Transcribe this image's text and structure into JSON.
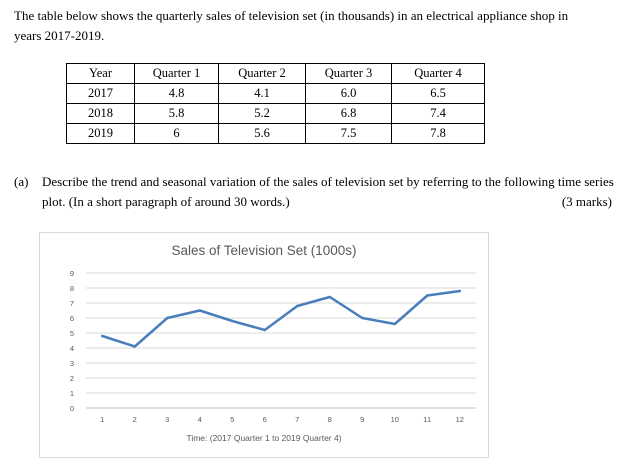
{
  "intro": {
    "line1": "The table below shows the quarterly sales of television set (in thousands) in an electrical appliance shop in",
    "line2": "years 2017-2019."
  },
  "table": {
    "headers": [
      "Year",
      "Quarter 1",
      "Quarter 2",
      "Quarter 3",
      "Quarter 4"
    ],
    "rows": [
      [
        "2017",
        "4.8",
        "4.1",
        "6.0",
        "6.5"
      ],
      [
        "2018",
        "5.8",
        "5.2",
        "6.8",
        "7.4"
      ],
      [
        "2019",
        "6",
        "5.6",
        "7.5",
        "7.8"
      ]
    ]
  },
  "question": {
    "number": "(a)",
    "text": "Describe the trend and seasonal variation of the sales of television set by referring to the following time series plot.  (In a short paragraph of around 30 words.)",
    "marks": "(3 marks)"
  },
  "chart_data": {
    "type": "line",
    "title": "Sales of Television Set (1000s)",
    "xlabel": "Time: (2017 Quarter 1 to 2019 Quarter 4)",
    "ylabel": "",
    "x": [
      1,
      2,
      3,
      4,
      5,
      6,
      7,
      8,
      9,
      10,
      11,
      12
    ],
    "y_ticks": [
      0,
      1,
      2,
      3,
      4,
      5,
      6,
      7,
      8,
      9
    ],
    "ylim": [
      0,
      9
    ],
    "grid": true,
    "legend": "none",
    "line_color": "#4a7ebb",
    "series": [
      {
        "values": [
          4.8,
          4.1,
          6.0,
          6.5,
          5.8,
          5.2,
          6.8,
          7.4,
          6.0,
          5.6,
          7.5,
          7.8
        ]
      }
    ]
  }
}
